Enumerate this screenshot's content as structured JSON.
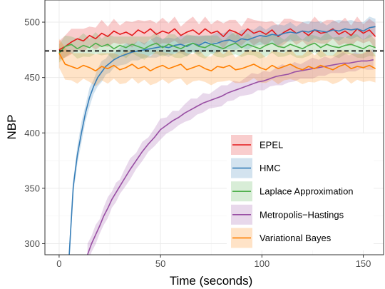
{
  "chart_data": {
    "type": "line",
    "title": "",
    "xlabel": "Time (seconds)",
    "ylabel": "NBP",
    "xlim": [
      -7,
      160
    ],
    "ylim": [
      290,
      520
    ],
    "x_ticks": [
      0,
      50,
      100,
      150
    ],
    "y_ticks": [
      300,
      350,
      400,
      450,
      500
    ],
    "grid": true,
    "legend_position": "bottom-right",
    "reference_line": {
      "y": 474,
      "style": "dashed",
      "color": "#000000"
    },
    "series": [
      {
        "name": "EPEL",
        "color": "#E41A1C",
        "x": [
          0,
          3,
          6,
          9,
          12,
          15,
          18,
          21,
          24,
          27,
          30,
          33,
          36,
          39,
          42,
          45,
          48,
          51,
          54,
          57,
          60,
          63,
          66,
          69,
          72,
          75,
          78,
          81,
          84,
          87,
          90,
          93,
          96,
          99,
          102,
          105,
          108,
          111,
          114,
          117,
          120,
          123,
          126,
          129,
          132,
          135,
          138,
          141,
          144,
          147,
          150,
          153,
          156
        ],
        "y": [
          475,
          478,
          482,
          485,
          483,
          488,
          485,
          490,
          487,
          492,
          489,
          491,
          488,
          493,
          490,
          494,
          489,
          492,
          490,
          494,
          488,
          491,
          493,
          489,
          494,
          490,
          492,
          487,
          493,
          491,
          488,
          494,
          490,
          492,
          489,
          493,
          487,
          491,
          494,
          490,
          492,
          488,
          493,
          490,
          491,
          494,
          489,
          492,
          488,
          494,
          490,
          493,
          487
        ],
        "band": 10
      },
      {
        "name": "HMC",
        "color": "#377EB8",
        "x": [
          5,
          7,
          9,
          11,
          13,
          15,
          17,
          19,
          21,
          23,
          25,
          27,
          30,
          33,
          36,
          39,
          42,
          45,
          48,
          51,
          54,
          57,
          60,
          63,
          66,
          69,
          72,
          75,
          78,
          81,
          84,
          87,
          90,
          93,
          96,
          99,
          102,
          105,
          108,
          111,
          114,
          117,
          120,
          123,
          126,
          129,
          132,
          135,
          138,
          141,
          144,
          147,
          150,
          153,
          156
        ],
        "y": [
          290,
          352,
          380,
          400,
          418,
          432,
          442,
          450,
          455,
          460,
          463,
          466,
          469,
          471,
          473,
          474,
          475,
          476,
          477,
          478,
          477,
          479,
          480,
          478,
          481,
          479,
          482,
          480,
          481,
          483,
          484,
          482,
          485,
          484,
          486,
          488,
          487,
          489,
          488,
          490,
          491,
          490,
          492,
          491,
          493,
          492,
          491,
          493,
          492,
          494,
          493,
          494,
          492,
          495,
          496
        ],
        "band": 8
      },
      {
        "name": "Laplace Approximation",
        "color": "#4DAF4A",
        "x": [
          0,
          3,
          6,
          9,
          12,
          15,
          18,
          21,
          24,
          27,
          30,
          33,
          36,
          39,
          42,
          45,
          48,
          51,
          54,
          57,
          60,
          63,
          66,
          69,
          72,
          75,
          78,
          81,
          84,
          87,
          90,
          93,
          96,
          99,
          102,
          105,
          108,
          111,
          114,
          117,
          120,
          123,
          126,
          129,
          132,
          135,
          138,
          141,
          144,
          147,
          150,
          153,
          156
        ],
        "y": [
          472,
          478,
          480,
          476,
          479,
          477,
          481,
          478,
          480,
          476,
          479,
          477,
          480,
          478,
          476,
          479,
          481,
          477,
          480,
          478,
          476,
          479,
          481,
          478,
          477,
          480,
          478,
          476,
          479,
          481,
          477,
          480,
          478,
          476,
          479,
          481,
          478,
          477,
          480,
          478,
          476,
          479,
          481,
          477,
          480,
          478,
          477,
          479,
          480,
          478,
          476,
          479,
          477
        ],
        "band": 9
      },
      {
        "name": "Metropolis−Hastings",
        "color": "#984EA3",
        "x": [
          14,
          16,
          18,
          20,
          22,
          24,
          26,
          28,
          30,
          32,
          35,
          38,
          41,
          44,
          47,
          50,
          53,
          56,
          59,
          62,
          65,
          68,
          71,
          74,
          77,
          80,
          83,
          86,
          89,
          92,
          95,
          98,
          101,
          104,
          107,
          110,
          113,
          116,
          119,
          122,
          125,
          128,
          131,
          134,
          137,
          140,
          143,
          146,
          149,
          152,
          155
        ],
        "y": [
          290,
          300,
          308,
          316,
          325,
          332,
          340,
          346,
          352,
          358,
          367,
          375,
          383,
          390,
          396,
          403,
          407,
          411,
          414,
          418,
          421,
          424,
          427,
          429,
          431,
          433,
          436,
          438,
          440,
          442,
          444,
          446,
          447,
          449,
          451,
          452,
          453,
          455,
          456,
          457,
          458,
          459,
          460,
          461,
          462,
          463,
          463,
          464,
          465,
          465,
          466
        ],
        "band": 8
      },
      {
        "name": "Variational Bayes",
        "color": "#FF7F00",
        "x": [
          0,
          3,
          6,
          9,
          12,
          15,
          18,
          21,
          24,
          27,
          30,
          33,
          36,
          39,
          42,
          45,
          48,
          51,
          54,
          57,
          60,
          63,
          66,
          69,
          72,
          75,
          78,
          81,
          84,
          87,
          90,
          93,
          96,
          99,
          102,
          105,
          108,
          111,
          114,
          117,
          120,
          123,
          126,
          129,
          132,
          135,
          138,
          141,
          144,
          147,
          150,
          153,
          156
        ],
        "y": [
          472,
          462,
          460,
          458,
          461,
          459,
          456,
          460,
          458,
          461,
          457,
          459,
          462,
          458,
          460,
          456,
          459,
          461,
          458,
          460,
          462,
          457,
          459,
          461,
          458,
          456,
          460,
          459,
          461,
          457,
          458,
          460,
          462,
          459,
          457,
          461,
          458,
          460,
          462,
          459,
          457,
          460,
          458,
          461,
          459,
          457,
          460,
          462,
          458,
          460,
          459,
          461,
          458
        ],
        "band": 13
      }
    ]
  }
}
